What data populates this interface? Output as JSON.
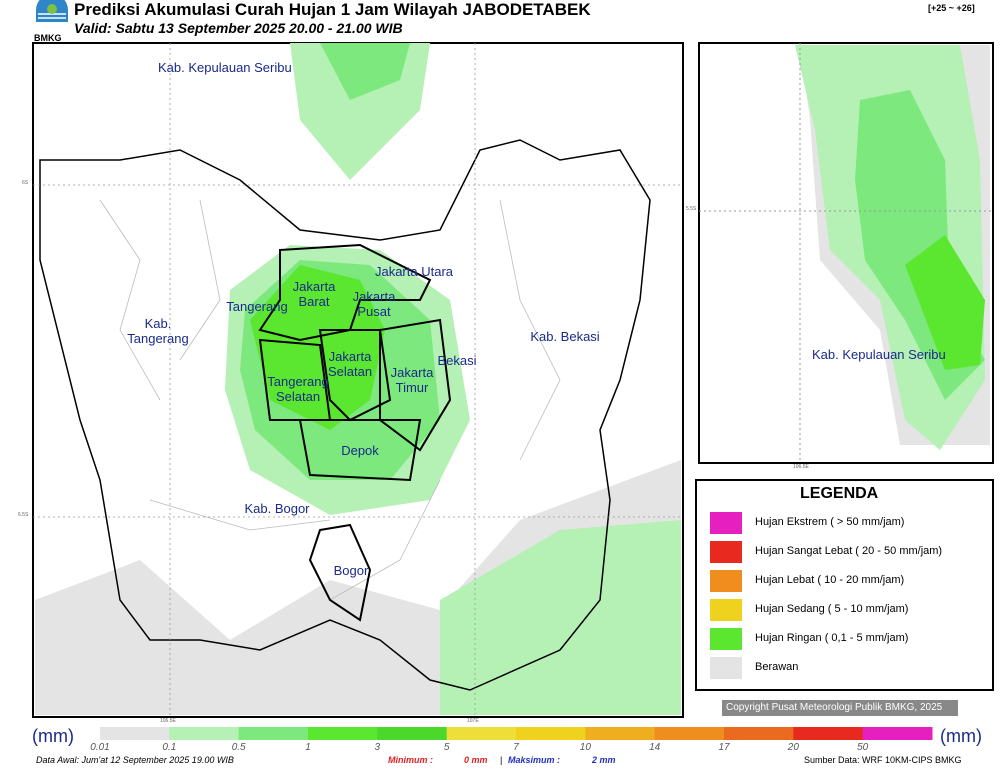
{
  "header": {
    "logo": "BMKG",
    "title": "Prediksi Akumulasi Curah Hujan 1 Jam Wilayah JABODETABEK",
    "valid": "Valid: Sabtu 13 September 2025 20.00 - 21.00 WIB",
    "range": "[+25 ~ +26]"
  },
  "map": {
    "regions": [
      "Kab. Kepulauan Seribu",
      "Jakarta Utara",
      "Jakarta Barat",
      "Jakarta Pusat",
      "Tangerang",
      "Kab. Tangerang",
      "Jakarta Selatan",
      "Jakarta Timur",
      "Bekasi",
      "Kab. Bekasi",
      "Tangerang Selatan",
      "Depok",
      "Kab. Bogor",
      "Bogor"
    ],
    "lat_labels": [
      "6S",
      "6.5S"
    ],
    "lon_labels": [
      "106.5E",
      "107E"
    ]
  },
  "inset": {
    "label": "Kab. Kepulauan Seribu",
    "lat_label": "5.5S",
    "lon_label": "106.5E"
  },
  "legend": {
    "title": "LEGENDA",
    "items": [
      {
        "label": "Hujan Ekstrem ( > 50 mm/jam)",
        "color": "#e61fbf"
      },
      {
        "label": "Hujan Sangat Lebat ( 20 - 50 mm/jam)",
        "color": "#e8291f"
      },
      {
        "label": "Hujan Lebat ( 10 - 20 mm/jam)",
        "color": "#ef8e1f"
      },
      {
        "label": "Hujan Sedang ( 5 - 10 mm/jam)",
        "color": "#eed21e"
      },
      {
        "label": "Hujan Ringan ( 0,1 - 5 mm/jam)",
        "color": "#5be630"
      },
      {
        "label": "Berawan",
        "color": "#e4e4e4"
      }
    ]
  },
  "copyright": "Copyright Pusat Meteorologi Publik BMKG, 2025",
  "colorbar": {
    "unit": "(mm)",
    "ticks": [
      "0.01",
      "0.1",
      "0.5",
      "1",
      "3",
      "5",
      "7",
      "10",
      "14",
      "17",
      "20",
      "50"
    ],
    "colors": [
      "#e4e4e4",
      "#b5f0b5",
      "#7de87d",
      "#5be630",
      "#4cd82a",
      "#eede3a",
      "#eed21e",
      "#efae1f",
      "#ef8e1f",
      "#ea6a1f",
      "#e8291f",
      "#e61fbf"
    ]
  },
  "footer": {
    "data_awal": "Data Awal: Jum'at 12 September 2025 19.00 WIB",
    "minimum_label": "Minimum :",
    "minimum_value": "0 mm",
    "separator": "|",
    "maximum_label": "Maksimum :",
    "maximum_value": "2 mm",
    "source": "Sumber Data: WRF 10KM-CIPS BMKG"
  }
}
